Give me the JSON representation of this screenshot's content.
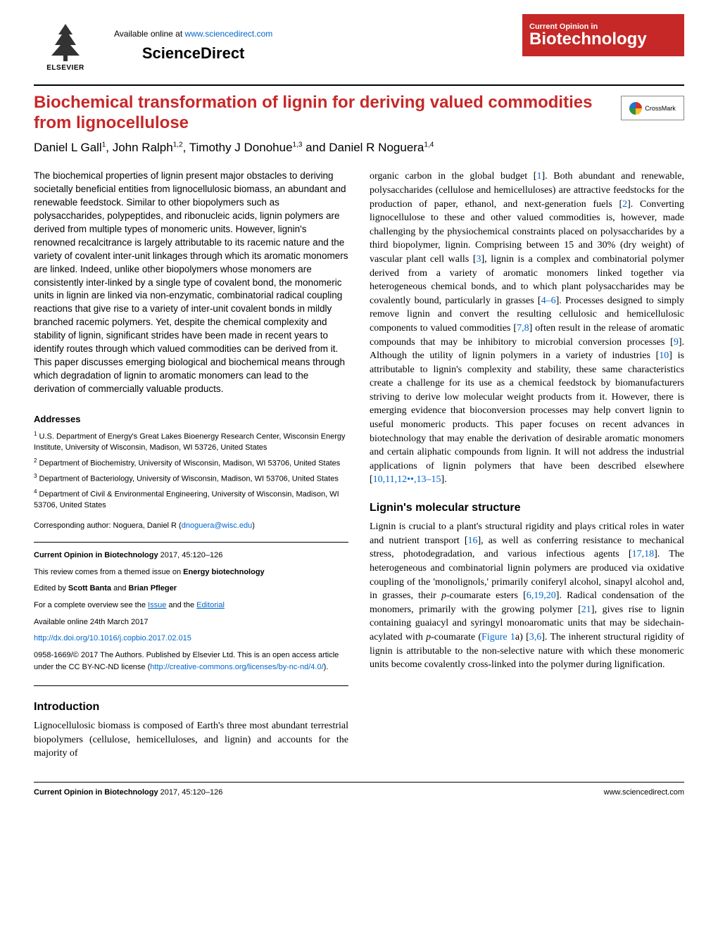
{
  "header": {
    "available_text": "Available online at ",
    "available_url": "www.sciencedirect.com",
    "sciencedirect": "ScienceDirect",
    "elsevier_label": "ELSEVIER",
    "journal_top": "Current Opinion in",
    "journal_main": "Biotechnology"
  },
  "crossmark_label": "CrossMark",
  "title": "Biochemical transformation of lignin for deriving valued commodities from lignocellulose",
  "authors_html_parts": {
    "a1": "Daniel L Gall",
    "s1": "1",
    "a2": ", John Ralph",
    "s2": "1,2",
    "a3": ", Timothy J Donohue",
    "s3": "1,3",
    "a4": " and Daniel R Noguera",
    "s4": "1,4"
  },
  "abstract": "The biochemical properties of lignin present major obstacles to deriving societally beneficial entities from lignocellulosic biomass, an abundant and renewable feedstock. Similar to other biopolymers such as polysaccharides, polypeptides, and ribonucleic acids, lignin polymers are derived from multiple types of monomeric units. However, lignin's renowned recalcitrance is largely attributable to its racemic nature and the variety of covalent inter-unit linkages through which its aromatic monomers are linked. Indeed, unlike other biopolymers whose monomers are consistently inter-linked by a single type of covalent bond, the monomeric units in lignin are linked via non-enzymatic, combinatorial radical coupling reactions that give rise to a variety of inter-unit covalent bonds in mildly branched racemic polymers. Yet, despite the chemical complexity and stability of lignin, significant strides have been made in recent years to identify routes through which valued commodities can be derived from it. This paper discusses emerging biological and biochemical means through which degradation of lignin to aromatic monomers can lead to the derivation of commercially valuable products.",
  "addresses_hdr": "Addresses",
  "affiliations": [
    {
      "num": "1",
      "text": "U.S. Department of Energy's Great Lakes Bioenergy Research Center, Wisconsin Energy Institute, University of Wisconsin, Madison, WI 53726, United States"
    },
    {
      "num": "2",
      "text": "Department of Biochemistry, University of Wisconsin, Madison, WI 53706, United States"
    },
    {
      "num": "3",
      "text": "Department of Bacteriology, University of Wisconsin, Madison, WI 53706, United States"
    },
    {
      "num": "4",
      "text": "Department of Civil & Environmental Engineering, University of Wisconsin, Madison, WI 53706, United States"
    }
  ],
  "corresponding": {
    "prefix": "Corresponding author: Noguera, Daniel R (",
    "email": "dnoguera@wisc.edu",
    "suffix": ")"
  },
  "info": {
    "citation_journal": "Current Opinion in Biotechnology",
    "citation_rest": " 2017, 45:120–126",
    "themed1": "This review comes from a themed issue on ",
    "themed2": "Energy biotechnology",
    "edited_prefix": "Edited by ",
    "editor1": "Scott Banta",
    "editor_and": " and ",
    "editor2": "Brian Pfleger",
    "overview1": "For a complete overview see the ",
    "overview_issue": "Issue",
    "overview2": " and the ",
    "overview_editorial": "Editorial",
    "avail_date": "Available online 24th March 2017",
    "doi": "http://dx.doi.org/10.1016/j.copbio.2017.02.015",
    "copyright1": "0958-1669/© 2017 The Authors. Published by Elsevier Ltd. This is an open access article under the CC BY-NC-ND license (",
    "cc_link": "http://creative-commons.org/licenses/by-nc-nd/4.0/",
    "copyright2": ")."
  },
  "intro_hdr": "Introduction",
  "intro_p1": "Lignocellulosic biomass is composed of Earth's three most abundant terrestrial biopolymers (cellulose, hemicelluloses, and lignin) and accounts for the majority of",
  "intro_p2_parts": [
    {
      "t": "organic carbon in the global budget [",
      "r": "1"
    },
    {
      "t": "]. Both abundant and renewable, polysaccharides (cellulose and hemicelluloses) are attractive feedstocks for the production of paper, ethanol, and next-generation fuels [",
      "r": "2"
    },
    {
      "t": "]. Converting lignocellulose to these and other valued commodities is, however, made challenging by the physiochemical constraints placed on polysaccharides by a third biopolymer, lignin. Comprising between 15 and 30% (dry weight) of vascular plant cell walls [",
      "r": "3"
    },
    {
      "t": "], lignin is a complex and combinatorial polymer derived from a variety of aromatic monomers linked together via heterogeneous chemical bonds, and to which plant polysaccharides may be covalently bound, particularly in grasses [",
      "r": "4–6"
    },
    {
      "t": "]. Processes designed to simply remove lignin and convert the resulting cellulosic and hemicellulosic components to valued commodities [",
      "r": "7,8"
    },
    {
      "t": "] often result in the release of aromatic compounds that may be inhibitory to microbial conversion processes [",
      "r": "9"
    },
    {
      "t": "]. Although the utility of lignin polymers in a variety of industries [",
      "r": "10"
    },
    {
      "t": "] is attributable to lignin's complexity and stability, these same characteristics create a challenge for its use as a chemical feedstock by biomanufacturers striving to derive low molecular weight products from it. However, there is emerging evidence that bioconversion processes may help convert lignin to useful monomeric products. This paper focuses on recent advances in biotechnology that may enable the derivation of desirable aromatic monomers and certain aliphatic compounds from lignin. It will not address the industrial applications of lignin polymers that have been described elsewhere [",
      "r": "10,11,12••,13–15"
    },
    {
      "t": "].",
      "r": ""
    }
  ],
  "struct_hdr": "Lignin's molecular structure",
  "struct_p_parts": [
    {
      "t": "Lignin is crucial to a plant's structural rigidity and plays critical roles in water and nutrient transport [",
      "r": "16"
    },
    {
      "t": "], as well as conferring resistance to mechanical stress, photodegradation, and various infectious agents [",
      "r": "17,18"
    },
    {
      "t": "]. The heterogeneous and combinatorial lignin polymers are produced via oxidative coupling of the 'monolignols,' primarily coniferyl alcohol, sinapyl alcohol and, in grasses, their ",
      "r": ""
    },
    {
      "t": "",
      "i": "p",
      "post": "-coumarate esters [",
      "r": "6,19,20"
    },
    {
      "t": "]. Radical condensation of the monomers, primarily with the growing polymer [",
      "r": "21"
    },
    {
      "t": "], gives rise to lignin containing guaiacyl and syringyl monoaromatic units that may be sidechain-acylated with ",
      "r": ""
    },
    {
      "t": "",
      "i": "p",
      "post": "-coumarate (",
      "link": "Figure 1",
      "post2": "a) [",
      "r": "3,6"
    },
    {
      "t": "]. The inherent structural rigidity of lignin is attributable to the non-selective nature with which these monomeric units become covalently cross-linked into the polymer during lignification.",
      "r": ""
    }
  ],
  "footer": {
    "left_bold": "Current Opinion in Biotechnology",
    "left_rest": " 2017, 45:120–126",
    "right": "www.sciencedirect.com"
  },
  "colors": {
    "brand_red": "#c62828",
    "link_blue": "#0066cc"
  }
}
